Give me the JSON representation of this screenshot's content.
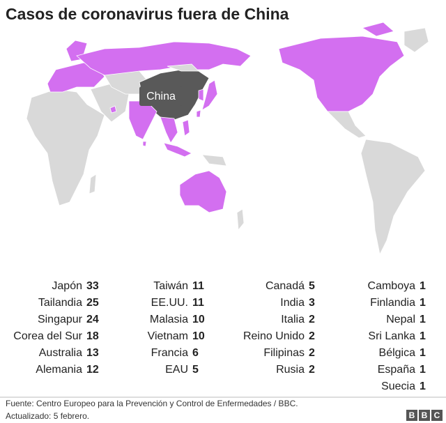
{
  "title": "Casos de coronavirus fuera de China",
  "map_label": "China",
  "table": {
    "columns": [
      [
        {
          "name": "Japón",
          "cases": 33
        },
        {
          "name": "Tailandia",
          "cases": 25
        },
        {
          "name": "Singapur",
          "cases": 24
        },
        {
          "name": "Corea del Sur",
          "cases": 18
        },
        {
          "name": "Australia",
          "cases": 13
        },
        {
          "name": "Alemania",
          "cases": 12
        }
      ],
      [
        {
          "name": "Taiwán",
          "cases": 11
        },
        {
          "name": "EE.UU.",
          "cases": 11
        },
        {
          "name": "Malasia",
          "cases": 10
        },
        {
          "name": "Vietnam",
          "cases": 10
        },
        {
          "name": "Francia",
          "cases": 6
        },
        {
          "name": "EAU",
          "cases": 5
        }
      ],
      [
        {
          "name": "Canadá",
          "cases": 5
        },
        {
          "name": "India",
          "cases": 3
        },
        {
          "name": "Italia",
          "cases": 2
        },
        {
          "name": "Reino Unido",
          "cases": 2
        },
        {
          "name": "Filipinas",
          "cases": 2
        },
        {
          "name": "Rusia",
          "cases": 2
        }
      ],
      [
        {
          "name": "Camboya",
          "cases": 1
        },
        {
          "name": "Finlandia",
          "cases": 1
        },
        {
          "name": "Nepal",
          "cases": 1
        },
        {
          "name": "Sri Lanka",
          "cases": 1
        },
        {
          "name": "Bélgica",
          "cases": 1
        },
        {
          "name": "España",
          "cases": 1
        },
        {
          "name": "Suecia",
          "cases": 1
        }
      ]
    ]
  },
  "footer": {
    "source": "Fuente: Centro Europeo para la Prevención y Control de Enfermedades / BBC.",
    "updated": "Actualizado: 5 febrero.",
    "logo": [
      "B",
      "B",
      "C"
    ]
  }
}
